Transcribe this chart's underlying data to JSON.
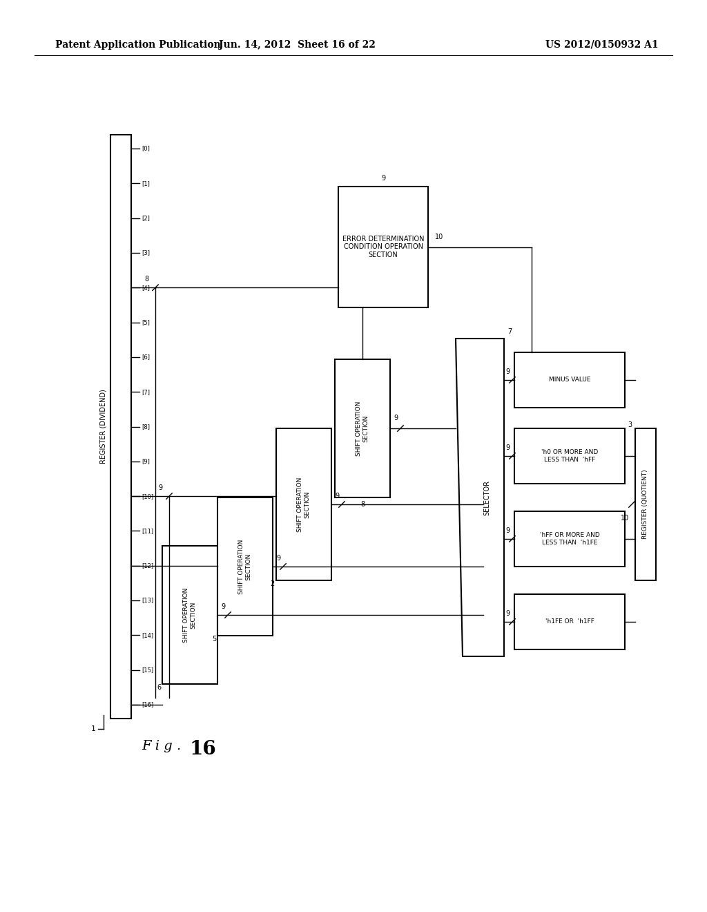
{
  "bg_color": "#ffffff",
  "header_left": "Patent Application Publication",
  "header_mid": "Jun. 14, 2012  Sheet 16 of 22",
  "header_right": "US 2012/0150932 A1",
  "fig_label": "Fig. 16",
  "fig_number": "16",
  "register_label": "REGISTER (DIVIDEND)",
  "register_bits": [
    "[0]",
    "[1]",
    "[2]",
    "[3]",
    "[4]",
    "[5]",
    "[6]",
    "[7]",
    "[8]",
    "[9]",
    "[10]",
    "[11]",
    "[12]",
    "[13]",
    "[14]",
    "[15]",
    "[16]"
  ],
  "shift_sections": [
    {
      "label": "SHIFT OPERATION\nSECTION",
      "id": 6
    },
    {
      "label": "SHIFT OPERATION\nSECTION",
      "id": 5
    },
    {
      "label": "SHIFT OPERATION\nSECTION",
      "id": 2
    },
    {
      "label": "SHIFT OPERATION\nSECTION",
      "id": 8
    }
  ],
  "error_box_label": "ERROR DETERMINATION\nCONDITION OPERATION\nSECTION",
  "error_box_id": 9,
  "selector_label": "SELECTOR",
  "selector_id": 7,
  "selector_outputs": [
    "MINUS VALUE",
    "'h0 OR MORE AND\nLESS THAN  'hFF",
    "'hFF OR MORE AND\nLESS THAN  'h1FE",
    "'h1FE OR  'h1FF"
  ],
  "register_quotient_label": "REGISTER (QUOTIENT)",
  "register_quotient_id": 3,
  "node_labels": {
    "n1": "1",
    "n2": "2",
    "n3": "3",
    "n5": "5",
    "n6": "6",
    "n7": "7",
    "n8_top": "8",
    "n8_mid": "8",
    "n9_left": "9",
    "n9_mid": "9",
    "n9_top": "9",
    "n9_s1": "9",
    "n9_s2": "9",
    "n9_s3": "9",
    "n10_err": "10",
    "n10_sel": "10"
  }
}
